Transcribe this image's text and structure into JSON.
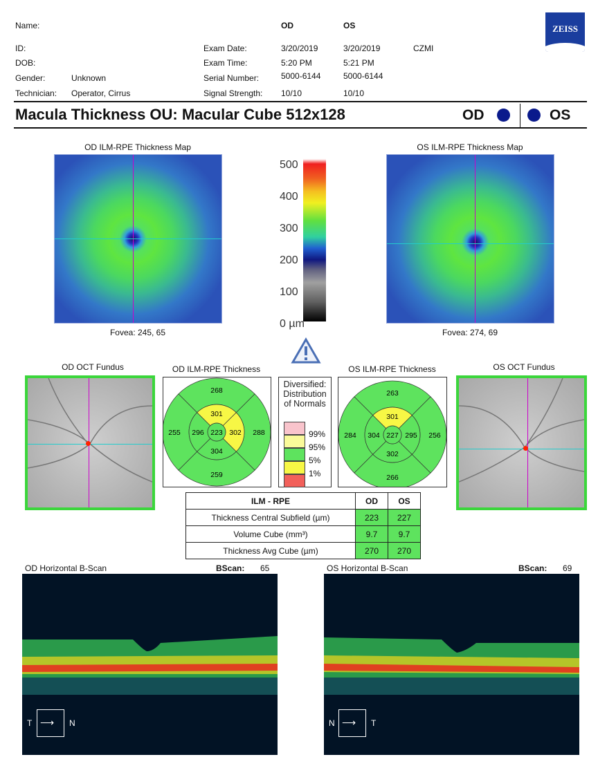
{
  "header": {
    "name_label": "Name:",
    "id_label": "ID:",
    "dob_label": "DOB:",
    "gender_label": "Gender:",
    "gender_value": "Unknown",
    "technician_label": "Technician:",
    "technician_value": "Operator, Cirrus",
    "od": "OD",
    "os": "OS",
    "exam_date_label": "Exam Date:",
    "exam_date_od": "3/20/2019",
    "exam_date_os": "3/20/2019",
    "site": "CZMI",
    "exam_time_label": "Exam Time:",
    "exam_time_od": "5:20 PM",
    "exam_time_os": "5:21 PM",
    "serial_label": "Serial Number:",
    "serial_od": "5000-6144",
    "serial_os": "5000-6144",
    "signal_label": "Signal Strength:",
    "signal_od": "10/10",
    "signal_os": "10/10",
    "logo": "ZEISS"
  },
  "title": "Macula Thickness OU: Macular Cube 512x128",
  "eye_od": "OD",
  "eye_os": "OS",
  "maps": {
    "od_title": "OD ILM-RPE Thickness Map",
    "os_title": "OS ILM-RPE Thickness Map",
    "od_fovea": "Fovea: 245, 65",
    "os_fovea": "Fovea: 274, 69",
    "scale_labels": [
      "500",
      "400",
      "300",
      "200",
      "100",
      "0 µm"
    ]
  },
  "fundus": {
    "od_title": "OD OCT Fundus",
    "os_title": "OS OCT Fundus"
  },
  "grids": {
    "od_title": "OD ILM-RPE Thickness",
    "os_title": "OS ILM-RPE Thickness",
    "od": {
      "center": "223",
      "inner_s": "301",
      "inner_n": "302",
      "inner_i": "304",
      "inner_t": "296",
      "outer_s": "268",
      "outer_n": "288",
      "outer_i": "259",
      "outer_t": "255"
    },
    "os": {
      "center": "227",
      "inner_s": "301",
      "inner_n": "304",
      "inner_i": "302",
      "inner_t": "295",
      "outer_s": "263",
      "outer_n": "284",
      "outer_i": "266",
      "outer_t": "256"
    },
    "colors": {
      "green": "#5ee35e",
      "yellow": "#f7f745"
    }
  },
  "legend": {
    "title": "Diversified: Distribution of Normals",
    "ticks": [
      "99%",
      "95%",
      "5%",
      "1%"
    ],
    "colors": [
      "#f9c4cc",
      "#fafa9a",
      "#5ee35e",
      "#f7f745",
      "#f2605a"
    ]
  },
  "table": {
    "header": [
      "ILM - RPE",
      "OD",
      "OS"
    ],
    "rows": [
      {
        "label": "Thickness Central Subfield (µm)",
        "od": "223",
        "os": "227"
      },
      {
        "label": "Volume Cube (mm³)",
        "od": "9.7",
        "os": "9.7"
      },
      {
        "label": "Thickness Avg Cube (µm)",
        "od": "270",
        "os": "270"
      }
    ]
  },
  "bscans": {
    "od_title": "OD Horizontal B-Scan",
    "os_title": "OS Horizontal B-Scan",
    "bscan_label": "BScan:",
    "od_num": "65",
    "os_num": "69",
    "od_left": "T",
    "od_right": "N",
    "os_left": "N",
    "os_right": "T"
  }
}
